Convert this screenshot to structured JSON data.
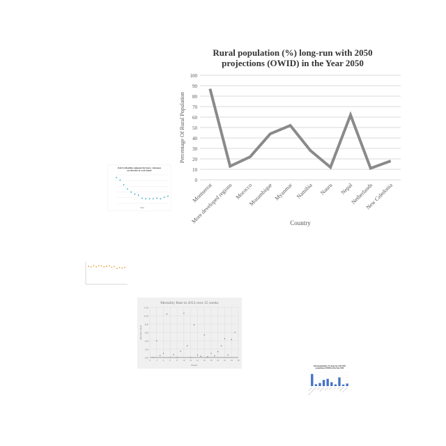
{
  "chart_data": [
    {
      "type": "line",
      "title": "Rural population (%) long-run with 2050 projections (OWID) in the Year 2050",
      "xlabel": "Country",
      "ylabel": "Percentage Of Rural  Population",
      "categories": [
        "Montserrat",
        "More developed regions",
        "Morocco",
        "Mozambique",
        "Myanmar",
        "Namibia",
        "Nauru",
        "Nepal",
        "Netherlands",
        "New Caledonia"
      ],
      "values": [
        87,
        13,
        22,
        44,
        52,
        28,
        12,
        62,
        11,
        18
      ],
      "ylim": [
        0,
        100
      ],
      "yticks": [
        0,
        10,
        20,
        30,
        40,
        50,
        60,
        70,
        80,
        90,
        100
      ],
      "grid": true,
      "line_color": "#8a8a8a"
    },
    {
      "type": "scatter",
      "title": "DALYs (Disability-Adjusted Life Years) - Substance use disorders in Cook Islands",
      "xlabel": "Year",
      "ylabel": "",
      "x": [
        1990,
        1992,
        1994,
        1996,
        1998,
        2000,
        2002,
        2004,
        2006,
        2008,
        2010,
        2012,
        2014,
        2016,
        2018
      ],
      "values": [
        210,
        205,
        196,
        188,
        182,
        178,
        176,
        170,
        169,
        169,
        169,
        170,
        169,
        172,
        174
      ],
      "ylim": [
        160,
        215
      ],
      "grid": true,
      "marker_color": "#31a9c9"
    },
    {
      "type": "scatter",
      "title": "",
      "xlabel": "",
      "ylabel": "",
      "x": [
        1,
        2,
        3,
        4,
        5,
        6,
        7,
        8,
        9,
        10,
        11,
        12,
        13,
        14,
        15
      ],
      "values": [
        8.1,
        7.8,
        8.3,
        7.9,
        8.4,
        8.2,
        7.9,
        8.1,
        8.3,
        7.7,
        8.0,
        7.1,
        7.5,
        7.3,
        7.6
      ],
      "ylim": [
        0,
        10
      ],
      "grid": false,
      "marker_color": "#e8a040"
    },
    {
      "type": "scatter",
      "title": "Mortality Rate in 2013 over 25 weeks",
      "xlabel": "Weeks",
      "ylabel": "Mortality Rate",
      "x": [
        1,
        2,
        3,
        4,
        5,
        6,
        7,
        8,
        9,
        10,
        11,
        12,
        13,
        14,
        15,
        16,
        17,
        18,
        19,
        20,
        21,
        22,
        23,
        24,
        25
      ],
      "values": [
        0,
        4,
        0.5,
        1,
        10.4,
        0,
        0.7,
        0,
        1.5,
        10.6,
        2.8,
        0,
        7.8,
        0.6,
        0.3,
        5.4,
        0.2,
        1,
        0.4,
        1.4,
        2.8,
        4.5,
        0.6,
        4.3,
        6
      ],
      "xticks": [
        0,
        2,
        4,
        6,
        8,
        10,
        12,
        14,
        16,
        18,
        20,
        22,
        24,
        26
      ],
      "yticks": [
        0,
        2,
        4,
        6,
        8,
        10,
        12
      ],
      "ylim": [
        0,
        12
      ],
      "grid": true,
      "marker_color": "#888888"
    },
    {
      "type": "bar",
      "title": "Rural population (%) long-run with 2050 projections (OWID) in the Year 2050",
      "xlabel": "",
      "ylabel": "",
      "categories": [
        "Montserrat",
        "More developed regions",
        "Morocco",
        "Mozambique",
        "Myanmar",
        "Namibia",
        "Nauru",
        "Nepal",
        "Netherlands",
        "New Caledonia"
      ],
      "values": [
        87,
        13,
        22,
        44,
        52,
        28,
        12,
        62,
        11,
        18
      ],
      "ylim": [
        0,
        100
      ],
      "bar_color": "#4472c4"
    }
  ]
}
